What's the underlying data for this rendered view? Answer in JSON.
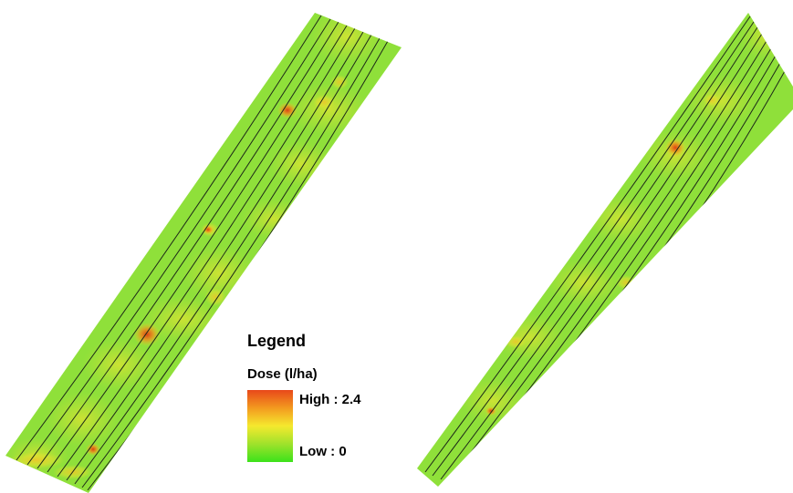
{
  "legend": {
    "title": "Legend",
    "subtitle": "Dose (l/ha)",
    "high_label": "High : 2.4",
    "low_label": "Low : 0",
    "high_value": 2.4,
    "low_value": 0,
    "colors": {
      "high": "#e8481a",
      "mid_high": "#f39a1f",
      "mid": "#f5e92e",
      "mid_low": "#9fe22b",
      "low": "#3ce21b"
    }
  },
  "maps": [
    {
      "name": "left-field-dose-map",
      "base_color": "#8fe03a"
    },
    {
      "name": "right-field-dose-map",
      "base_color": "#8fe03a"
    }
  ],
  "colors": {
    "row_line": "#1d2a18",
    "background": "#ffffff"
  }
}
